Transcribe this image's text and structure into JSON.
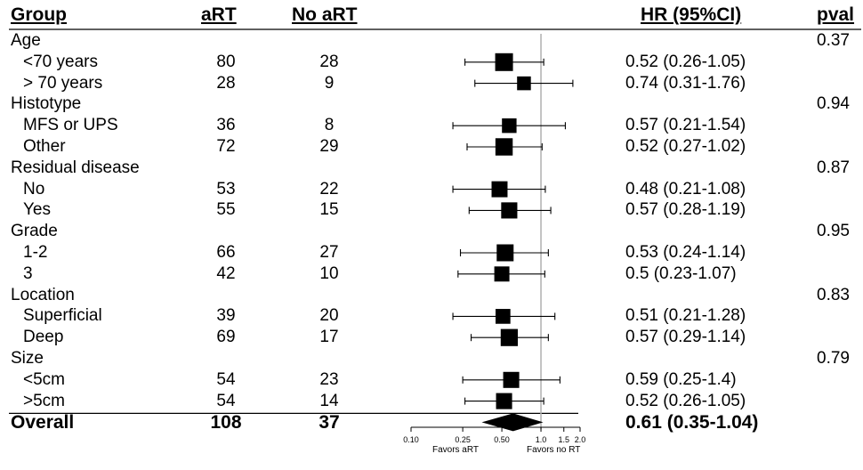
{
  "headers": {
    "group": "Group",
    "art": "aRT",
    "no_art": "No aRT",
    "hr": "HR (95%CI)",
    "pval": "pval"
  },
  "rows": [
    {
      "kind": "group",
      "label": "Age",
      "pval": "0.37"
    },
    {
      "kind": "sub",
      "label": "<70 years",
      "art": "80",
      "no_art": "28",
      "hr_text": "0.52 (0.26-1.05)"
    },
    {
      "kind": "sub",
      "label": "> 70 years",
      "art": "28",
      "no_art": "9",
      "hr_text": "0.74 (0.31-1.76)"
    },
    {
      "kind": "group",
      "label": "Histotype",
      "pval": "0.94"
    },
    {
      "kind": "sub",
      "label": "MFS or UPS",
      "art": "36",
      "no_art": "8",
      "hr_text": "0.57 (0.21-1.54)"
    },
    {
      "kind": "sub",
      "label": "Other",
      "art": "72",
      "no_art": "29",
      "hr_text": "0.52 (0.27-1.02)"
    },
    {
      "kind": "group",
      "label": "Residual disease",
      "pval": "0.87"
    },
    {
      "kind": "sub",
      "label": "No",
      "art": "53",
      "no_art": "22",
      "hr_text": "0.48 (0.21-1.08)"
    },
    {
      "kind": "sub",
      "label": "Yes",
      "art": "55",
      "no_art": "15",
      "hr_text": "0.57 (0.28-1.19)"
    },
    {
      "kind": "group",
      "label": "Grade",
      "pval": "0.95"
    },
    {
      "kind": "sub",
      "label": "1-2",
      "art": "66",
      "no_art": "27",
      "hr_text": "0.53 (0.24-1.14)"
    },
    {
      "kind": "sub",
      "label": "3",
      "art": "42",
      "no_art": "10",
      "hr_text": "0.5 (0.23-1.07)"
    },
    {
      "kind": "group",
      "label": "Location",
      "pval": "0.83"
    },
    {
      "kind": "sub",
      "label": "Superficial",
      "art": "39",
      "no_art": "20",
      "hr_text": "0.51 (0.21-1.28)"
    },
    {
      "kind": "sub",
      "label": "Deep",
      "art": "69",
      "no_art": "17",
      "hr_text": "0.57 (0.29-1.14)"
    },
    {
      "kind": "group",
      "label": "Size",
      "pval": "0.79"
    },
    {
      "kind": "sub",
      "label": "<5cm",
      "art": "54",
      "no_art": "23",
      "hr_text": "0.59 (0.25-1.4)"
    },
    {
      "kind": "sub",
      "label": ">5cm",
      "art": "54",
      "no_art": "14",
      "hr_text": "0.52 (0.26-1.05)"
    },
    {
      "kind": "overall",
      "label": "Overall",
      "art": "108",
      "no_art": "37",
      "hr_text": "0.61 (0.35-1.04)"
    }
  ],
  "chart_data": {
    "type": "forest",
    "scale": "log",
    "xlim": [
      0.1,
      2.0
    ],
    "ticks": [
      "0.10",
      "0.25",
      "0.50",
      "1.0",
      "1.5",
      "2.0"
    ],
    "reference_line": 1.0,
    "xlabel_left": "Favors aRT",
    "xlabel_right": "Favors no RT",
    "estimates": [
      {
        "label": "<70 years",
        "hr": 0.52,
        "lo": 0.26,
        "hi": 1.05,
        "weight": 80
      },
      {
        "label": "> 70 years",
        "hr": 0.74,
        "lo": 0.31,
        "hi": 1.76,
        "weight": 28
      },
      {
        "label": "MFS or UPS",
        "hr": 0.57,
        "lo": 0.21,
        "hi": 1.54,
        "weight": 36
      },
      {
        "label": "Other",
        "hr": 0.52,
        "lo": 0.27,
        "hi": 1.02,
        "weight": 72
      },
      {
        "label": "No",
        "hr": 0.48,
        "lo": 0.21,
        "hi": 1.08,
        "weight": 53
      },
      {
        "label": "Yes",
        "hr": 0.57,
        "lo": 0.28,
        "hi": 1.19,
        "weight": 55
      },
      {
        "label": "1-2",
        "hr": 0.53,
        "lo": 0.24,
        "hi": 1.14,
        "weight": 66
      },
      {
        "label": "3",
        "hr": 0.5,
        "lo": 0.23,
        "hi": 1.07,
        "weight": 42
      },
      {
        "label": "Superficial",
        "hr": 0.51,
        "lo": 0.21,
        "hi": 1.28,
        "weight": 39
      },
      {
        "label": "Deep",
        "hr": 0.57,
        "lo": 0.29,
        "hi": 1.14,
        "weight": 69
      },
      {
        "label": "<5cm",
        "hr": 0.59,
        "lo": 0.25,
        "hi": 1.4,
        "weight": 54
      },
      {
        "label": ">5cm",
        "hr": 0.52,
        "lo": 0.26,
        "hi": 1.05,
        "weight": 54
      }
    ],
    "overall": {
      "label": "Overall",
      "hr": 0.61,
      "lo": 0.35,
      "hi": 1.04
    }
  }
}
